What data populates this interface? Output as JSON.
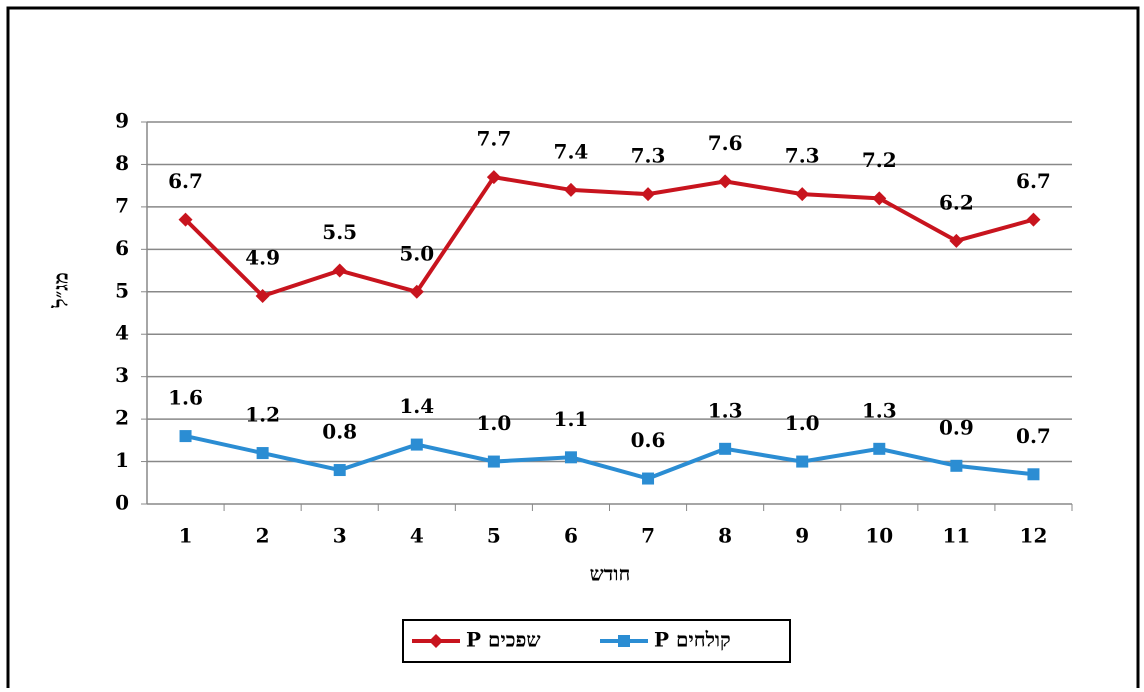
{
  "chart_data": {
    "type": "line",
    "x_label": "חודש",
    "y_label": "מג״ל",
    "categories": [
      "1",
      "2",
      "3",
      "4",
      "5",
      "6",
      "7",
      "8",
      "9",
      "10",
      "11",
      "12"
    ],
    "series": [
      {
        "name": "שפכים P",
        "color": "#c8141e",
        "marker": "diamond",
        "values": [
          6.7,
          4.9,
          5.5,
          5.0,
          7.7,
          7.4,
          7.3,
          7.6,
          7.3,
          7.2,
          6.2,
          6.7
        ],
        "value_labels": [
          "6.7",
          "4.9",
          "5.5",
          "5.0",
          "7.7",
          "7.4",
          "7.3",
          "7.6",
          "7.3",
          "7.2",
          "6.2",
          "6.7"
        ]
      },
      {
        "name": "קולחים P",
        "color": "#2b8dd3",
        "marker": "square",
        "values": [
          1.6,
          1.2,
          0.8,
          1.4,
          1.0,
          1.1,
          0.6,
          1.3,
          1.0,
          1.3,
          0.9,
          0.7
        ],
        "value_labels": [
          "1.6",
          "1.2",
          "0.8",
          "1.4",
          "1.0",
          "1.1",
          "0.6",
          "1.3",
          "1.0",
          "1.3",
          "0.9",
          "0.7"
        ]
      }
    ],
    "ylim": [
      0,
      9
    ],
    "yticks": [
      0,
      1,
      2,
      3,
      4,
      5,
      6,
      7,
      8,
      9
    ],
    "grid": true,
    "legend": "bottom"
  }
}
